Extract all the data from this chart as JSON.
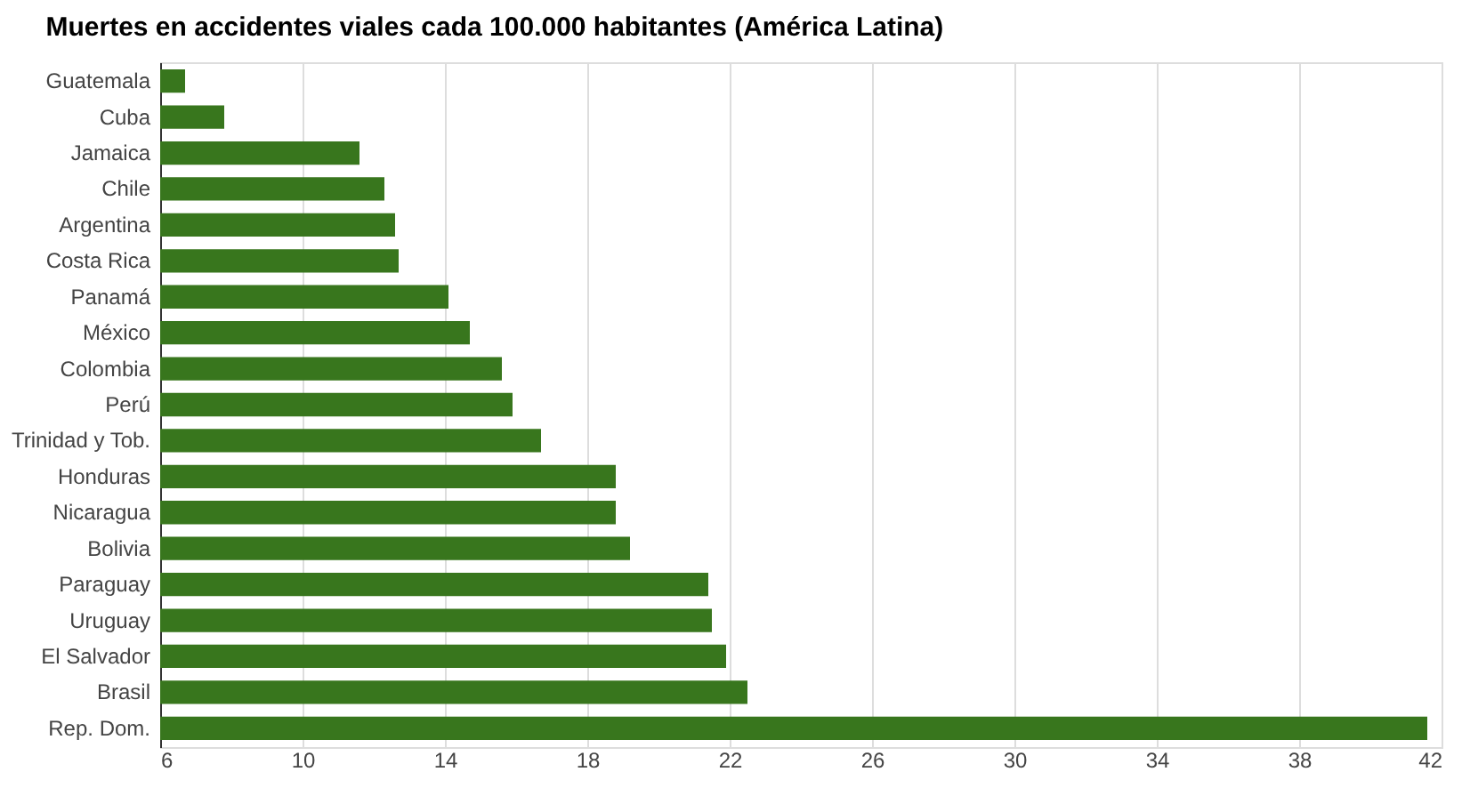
{
  "chart_data": {
    "type": "bar",
    "orientation": "horizontal",
    "title": "Muertes en accidentes viales cada 100.000 habitantes (América Latina)",
    "categories": [
      "Guatemala",
      "Cuba",
      "Jamaica",
      "Chile",
      "Argentina",
      "Costa Rica",
      "Panamá",
      "México",
      "Colombia",
      "Perú",
      "Trinidad y Tob.",
      "Honduras",
      "Nicaragua",
      "Bolivia",
      "Paraguay",
      "Uruguay",
      "El Salvador",
      "Brasil",
      "Rep. Dom."
    ],
    "values": [
      6.7,
      7.8,
      11.6,
      12.3,
      12.6,
      12.7,
      14.1,
      14.7,
      15.6,
      15.9,
      16.7,
      18.8,
      18.8,
      19.2,
      21.4,
      21.5,
      21.9,
      22.5,
      41.6
    ],
    "color": "#38761d",
    "xlim": [
      6,
      42
    ],
    "xticks": [
      6,
      10,
      14,
      18,
      22,
      26,
      30,
      34,
      38,
      42
    ],
    "grid": "x"
  }
}
